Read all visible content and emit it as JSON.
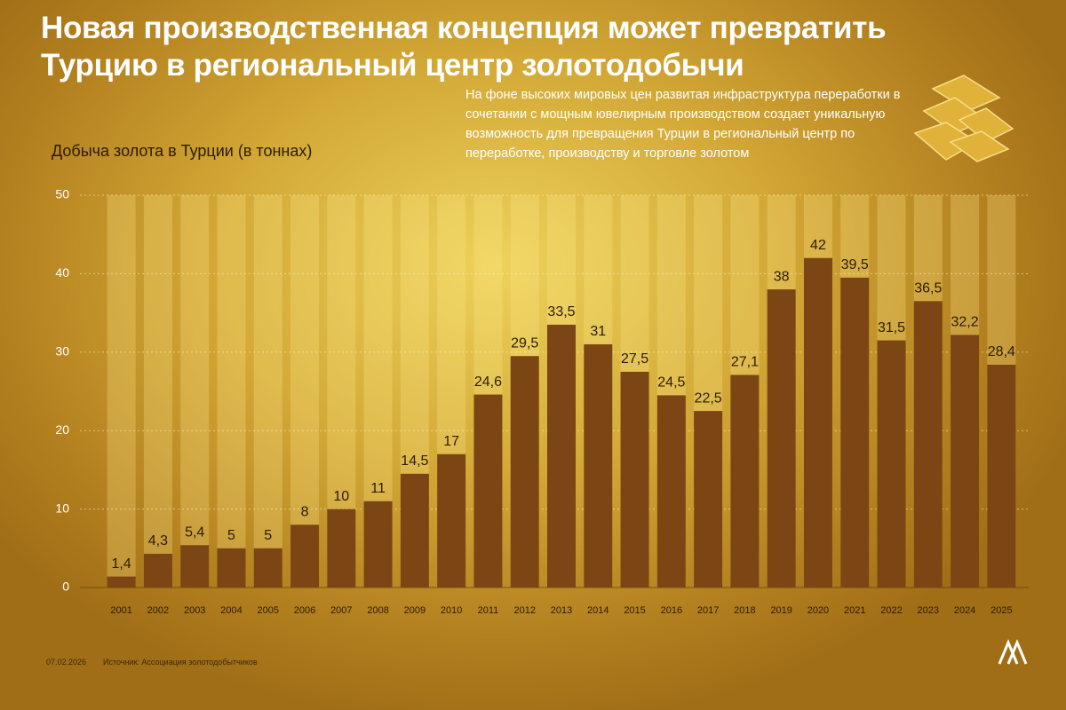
{
  "title": [
    "Новая производственная концепция может превратить",
    "Турцию в региональный центр золотодобычи"
  ],
  "subtitle": "На фоне высоких мировых цен развитая инфраструктура переработки в сочетании с мощным ювелирным производством создает уникальную возможность для превращения Турции в региональный центр по переработке, производству и торговле золотом",
  "date": "07.02.2026",
  "source": "Источник: Ассоциация золотодобытчиков",
  "chart_data": {
    "type": "bar",
    "y_label": "Добыча золота в Турции (в тоннах)",
    "categories": [
      "2001",
      "2002",
      "2003",
      "2004",
      "2005",
      "2006",
      "2007",
      "2008",
      "2009",
      "2010",
      "2011",
      "2012",
      "2013",
      "2014",
      "2015",
      "2016",
      "2017",
      "2018",
      "2019",
      "2020",
      "2021",
      "2022",
      "2023",
      "2024",
      "2025"
    ],
    "values": [
      1.4,
      4.3,
      5.4,
      5,
      5,
      8,
      10,
      11,
      14.5,
      17,
      24.6,
      29.5,
      33.5,
      31,
      27.5,
      24.5,
      22.5,
      27.1,
      38,
      42,
      39.5,
      31.5,
      36.5,
      32.2,
      28.4
    ],
    "value_labels": [
      "1,4",
      "4,3",
      "5,4",
      "5",
      "5",
      "8",
      "10",
      "11",
      "14,5",
      "17",
      "24,6",
      "29,5",
      "33,5",
      "31",
      "27,5",
      "24,5",
      "22,5",
      "27,1",
      "38",
      "42",
      "39,5",
      "31,5",
      "36,5",
      "32,2",
      "28,4"
    ],
    "color": "#7b4613",
    "ylim": [
      0,
      50
    ],
    "yticks": [
      0,
      10,
      20,
      30,
      40,
      50
    ],
    "grid": true
  }
}
